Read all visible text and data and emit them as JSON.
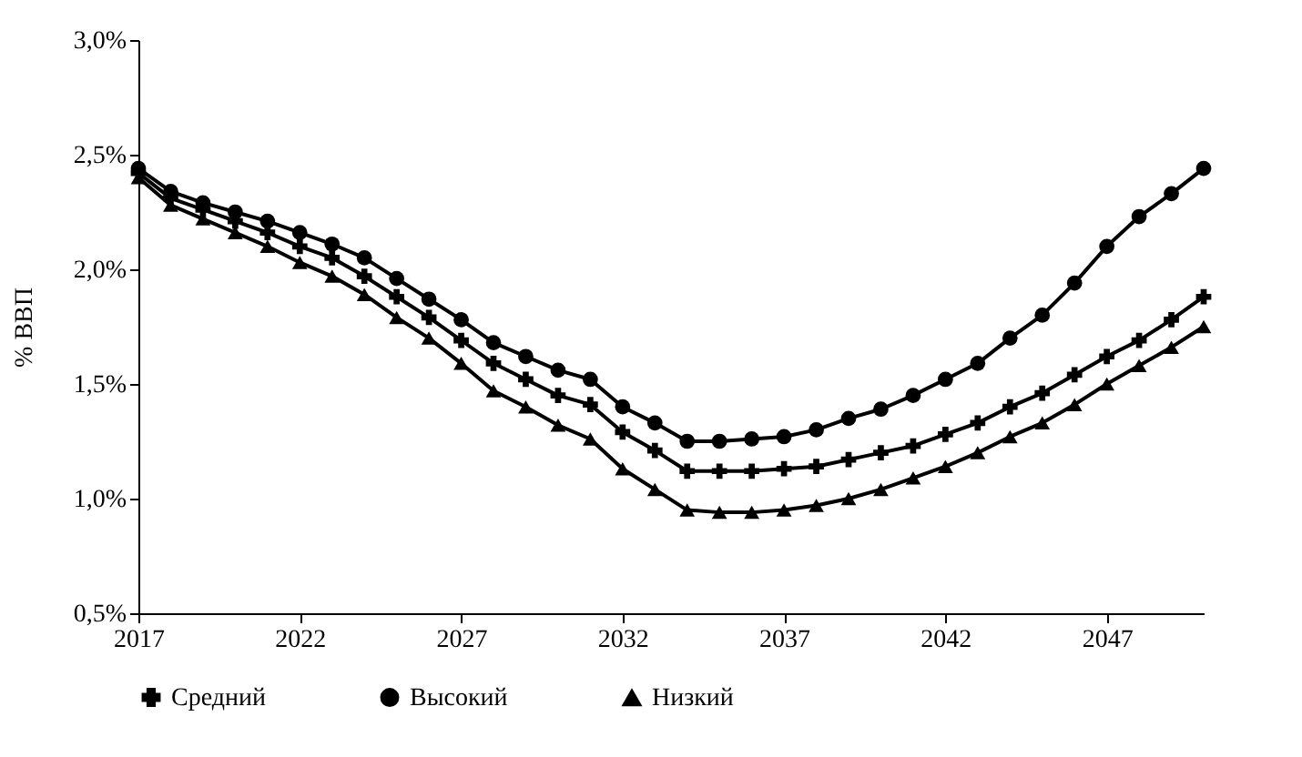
{
  "chart_data": {
    "type": "line",
    "ylabel": "% ВВП",
    "x": [
      2017,
      2018,
      2019,
      2020,
      2021,
      2022,
      2023,
      2024,
      2025,
      2026,
      2027,
      2028,
      2029,
      2030,
      2031,
      2032,
      2033,
      2034,
      2035,
      2036,
      2037,
      2038,
      2039,
      2040,
      2041,
      2042,
      2043,
      2044,
      2045,
      2046,
      2047,
      2048,
      2049,
      2050
    ],
    "series": [
      {
        "name": "Средний",
        "color": "#000000",
        "marker": "cross",
        "values": [
          2.42,
          2.31,
          2.26,
          2.21,
          2.16,
          2.1,
          2.05,
          1.97,
          1.88,
          1.79,
          1.69,
          1.59,
          1.52,
          1.45,
          1.41,
          1.29,
          1.21,
          1.12,
          1.12,
          1.12,
          1.13,
          1.14,
          1.17,
          1.2,
          1.23,
          1.28,
          1.33,
          1.4,
          1.46,
          1.54,
          1.62,
          1.69,
          1.78,
          1.88
        ]
      },
      {
        "name": "Высокий",
        "color": "#000000",
        "marker": "circle",
        "values": [
          2.44,
          2.34,
          2.29,
          2.25,
          2.21,
          2.16,
          2.11,
          2.05,
          1.96,
          1.87,
          1.78,
          1.68,
          1.62,
          1.56,
          1.52,
          1.4,
          1.33,
          1.25,
          1.25,
          1.26,
          1.27,
          1.3,
          1.35,
          1.39,
          1.45,
          1.52,
          1.59,
          1.7,
          1.8,
          1.94,
          2.1,
          2.23,
          2.33,
          2.44
        ]
      },
      {
        "name": "Низкий",
        "color": "#000000",
        "marker": "triangle",
        "values": [
          2.4,
          2.28,
          2.22,
          2.16,
          2.1,
          2.03,
          1.97,
          1.89,
          1.79,
          1.7,
          1.59,
          1.47,
          1.4,
          1.32,
          1.26,
          1.13,
          1.04,
          0.95,
          0.94,
          0.94,
          0.95,
          0.97,
          1.0,
          1.04,
          1.09,
          1.14,
          1.2,
          1.27,
          1.33,
          1.41,
          1.5,
          1.58,
          1.66,
          1.75
        ]
      }
    ],
    "xlim": [
      2017,
      2050
    ],
    "xticks": [
      2017,
      2022,
      2027,
      2032,
      2037,
      2042,
      2047
    ],
    "ylim": [
      0.5,
      3.0
    ],
    "yticks": [
      {
        "value": 0.5,
        "label": "0,5%"
      },
      {
        "value": 1.0,
        "label": "1,0%"
      },
      {
        "value": 1.5,
        "label": "1,5%"
      },
      {
        "value": 2.0,
        "label": "2,0%"
      },
      {
        "value": 2.5,
        "label": "2,5%"
      },
      {
        "value": 3.0,
        "label": "3,0%"
      }
    ],
    "grid": false,
    "legend": "bottom",
    "line_style": "solid"
  }
}
